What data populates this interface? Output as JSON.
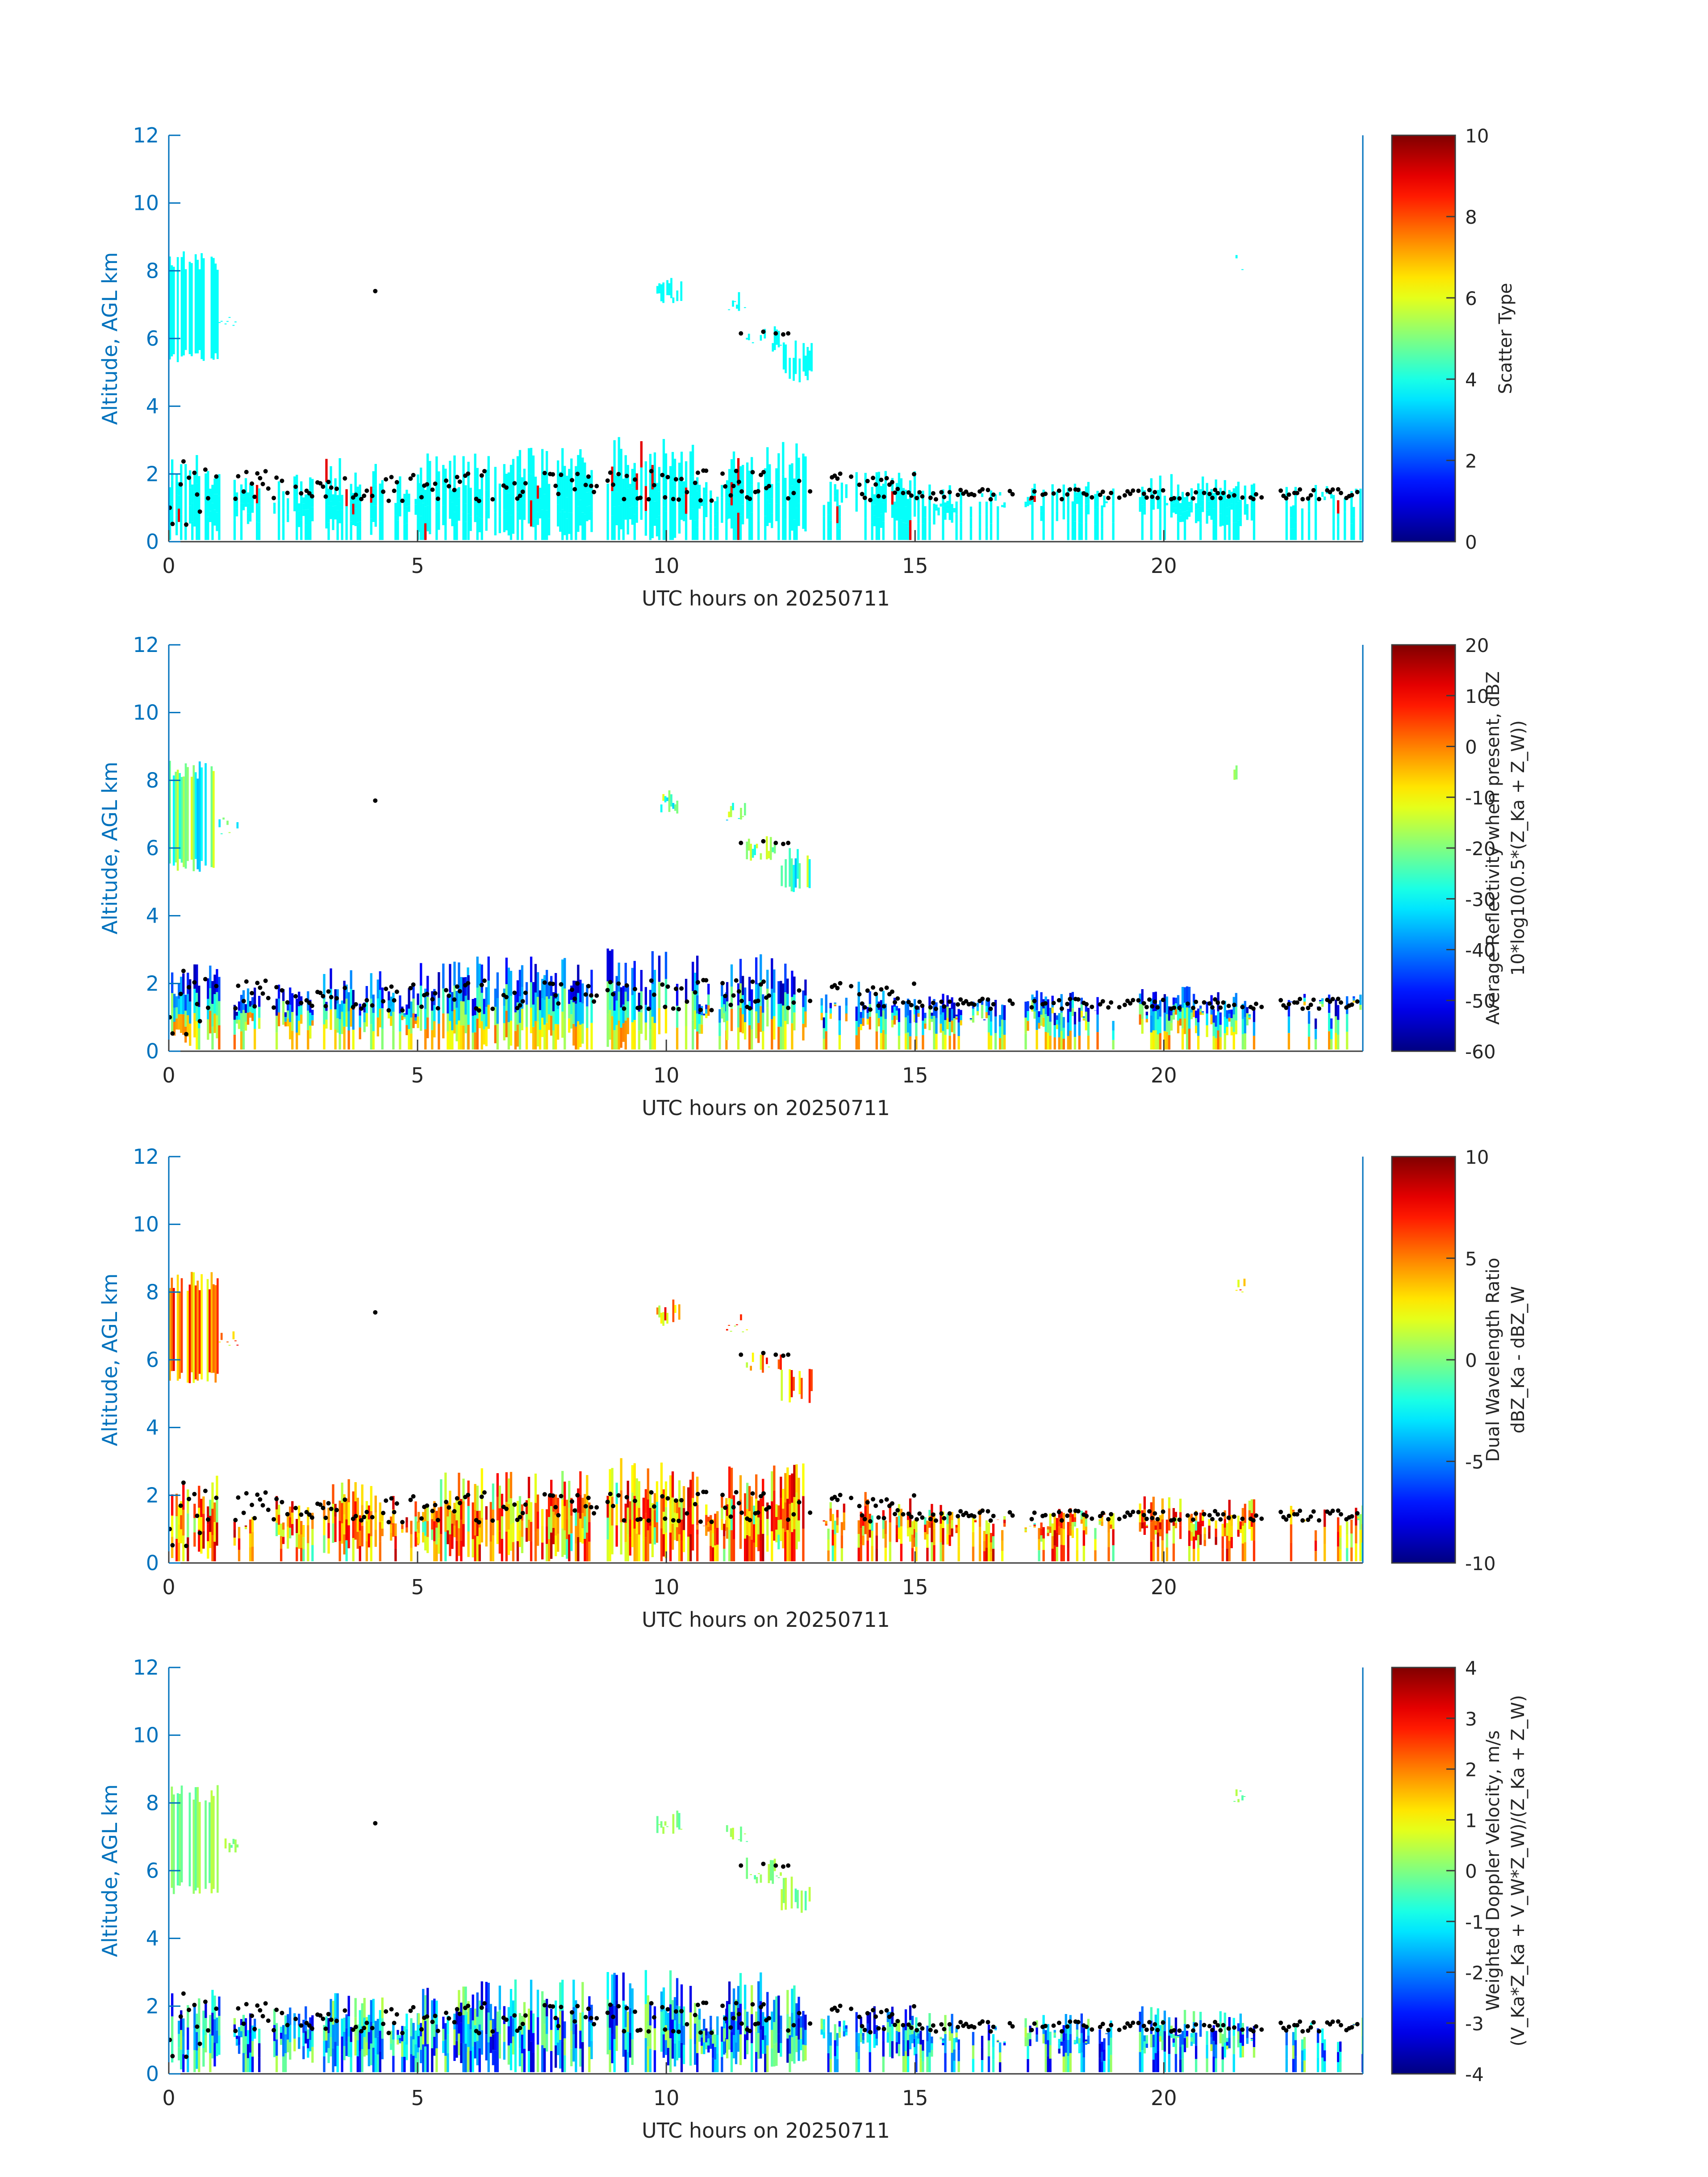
{
  "figure": {
    "date": "20250711"
  },
  "chart_data": [
    {
      "type": "heatmap",
      "xlabel": "UTC hours on 20250711",
      "ylabel": "Altitude, AGL km",
      "xlim": [
        0,
        24
      ],
      "ylim": [
        0,
        12
      ],
      "x_ticks": [
        0,
        5,
        10,
        15,
        20
      ],
      "y_ticks": [
        0,
        2,
        4,
        6,
        8,
        10,
        12
      ],
      "colorbar": {
        "label_lines": [
          "Scatter Type"
        ],
        "clim": [
          0,
          10
        ],
        "ticks": [
          0,
          2,
          4,
          6,
          8,
          10
        ]
      },
      "colormap": "jet",
      "dominant_value": 3.8,
      "sparse_value": 9.0,
      "cloud_base_markers": "black dots along cloud base"
    },
    {
      "type": "heatmap",
      "xlabel": "UTC hours on 20250711",
      "ylabel": "Altitude, AGL km",
      "xlim": [
        0,
        24
      ],
      "ylim": [
        0,
        12
      ],
      "x_ticks": [
        0,
        5,
        10,
        15,
        20
      ],
      "y_ticks": [
        0,
        2,
        4,
        6,
        8,
        10,
        12
      ],
      "colorbar": {
        "label_lines": [
          "Average Reflectivity when present, dBZ",
          "10*log10(0.5*(Z_Ka + Z_W))"
        ],
        "clim": [
          -60,
          20
        ],
        "ticks": [
          -60,
          -50,
          -40,
          -30,
          -20,
          -10,
          0,
          10,
          20
        ]
      },
      "colormap": "jet"
    },
    {
      "type": "heatmap",
      "xlabel": "UTC hours on 20250711",
      "ylabel": "Altitude, AGL km",
      "xlim": [
        0,
        24
      ],
      "ylim": [
        0,
        12
      ],
      "x_ticks": [
        0,
        5,
        10,
        15,
        20
      ],
      "y_ticks": [
        0,
        2,
        4,
        6,
        8,
        10,
        12
      ],
      "colorbar": {
        "label_lines": [
          "Dual Wavelength Ratio",
          "dBZ_Ka - dBZ_W"
        ],
        "clim": [
          -10,
          10
        ],
        "ticks": [
          -10,
          -5,
          0,
          5,
          10
        ]
      },
      "colormap": "jet"
    },
    {
      "type": "heatmap",
      "xlabel": "UTC hours on 20250711",
      "ylabel": "Altitude, AGL km",
      "xlim": [
        0,
        24
      ],
      "ylim": [
        0,
        12
      ],
      "x_ticks": [
        0,
        5,
        10,
        15,
        20
      ],
      "y_ticks": [
        0,
        2,
        4,
        6,
        8,
        10,
        12
      ],
      "colorbar": {
        "label_lines": [
          "Weighted Doppler Velocity, m/s",
          "(V_Ka*Z_Ka + V_W*Z_W)/(Z_Ka + Z_W)"
        ],
        "clim": [
          -4,
          4
        ],
        "ticks": [
          -4,
          -3,
          -2,
          -1,
          0,
          1,
          2,
          3,
          4
        ]
      },
      "colormap": "jet"
    }
  ]
}
